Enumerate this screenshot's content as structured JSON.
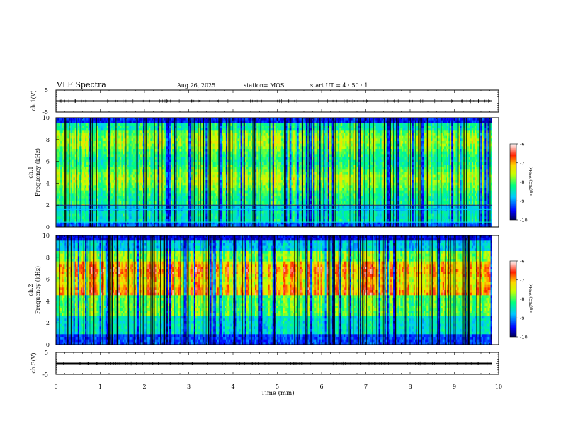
{
  "header": {
    "title": "VLF Spectra",
    "date": "Aug.26, 2025",
    "station": "station= MOS",
    "start": "start  UT  =   4  : 50 : 1"
  },
  "chart_data": [
    {
      "type": "line",
      "name": "ch1-waveform",
      "ylabel": "ch.1(V)",
      "ylim": [
        -5,
        5
      ],
      "y_ticks": [
        "5",
        "-5"
      ],
      "x": [
        0,
        9.85
      ],
      "values": [
        0,
        0
      ]
    },
    {
      "type": "heatmap",
      "name": "ch1-spectrogram",
      "ylabel_channel": "ch.1",
      "ylabel": "Frequency (kHz)",
      "ylim": [
        0,
        10
      ],
      "y_ticks": [
        "0",
        "2",
        "4",
        "6",
        "8",
        "10"
      ],
      "xlim": [
        0,
        10
      ],
      "data_extent_min": 9.85,
      "colorbar": {
        "label": "log(PSD)(V²/Hz)",
        "range": [
          -10,
          -6
        ],
        "ticks": [
          "-6",
          "-7",
          "-8",
          "-9",
          "-10"
        ]
      }
    },
    {
      "type": "heatmap",
      "name": "ch2-spectrogram",
      "ylabel_channel": "ch.2",
      "ylabel": "Frequency (kHz)",
      "ylim": [
        0,
        10
      ],
      "y_ticks": [
        "0",
        "2",
        "4",
        "6",
        "8",
        "10"
      ],
      "xlim": [
        0,
        10
      ],
      "data_extent_min": 9.85,
      "colorbar": {
        "label": "log(PSD)(V²/Hz)",
        "range": [
          -10,
          -6
        ],
        "ticks": [
          "-6",
          "-7",
          "-8",
          "-9",
          "-10"
        ]
      }
    },
    {
      "type": "line",
      "name": "ch3-waveform",
      "ylabel": "ch.3(V)",
      "ylim": [
        -5,
        5
      ],
      "y_ticks": [
        "5",
        "-5"
      ],
      "x": [
        0,
        9.85
      ],
      "values": [
        0,
        0
      ]
    }
  ],
  "x_axis": {
    "label": "Time  (min)",
    "ticks": [
      "0",
      "1",
      "2",
      "3",
      "4",
      "5",
      "6",
      "7",
      "8",
      "9",
      "10"
    ]
  }
}
